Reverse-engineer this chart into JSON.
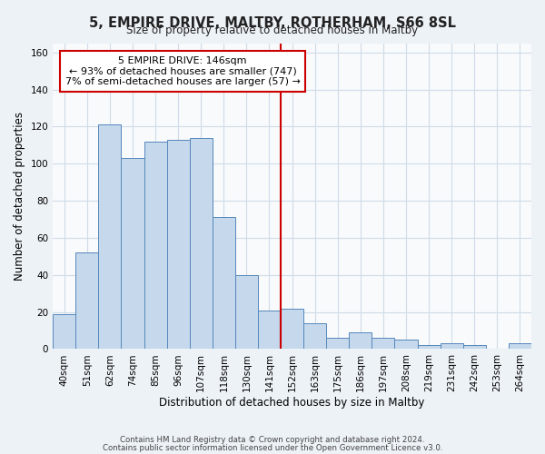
{
  "title": "5, EMPIRE DRIVE, MALTBY, ROTHERHAM, S66 8SL",
  "subtitle": "Size of property relative to detached houses in Maltby",
  "xlabel": "Distribution of detached houses by size in Maltby",
  "ylabel": "Number of detached properties",
  "bar_labels": [
    "40sqm",
    "51sqm",
    "62sqm",
    "74sqm",
    "85sqm",
    "96sqm",
    "107sqm",
    "118sqm",
    "130sqm",
    "141sqm",
    "152sqm",
    "163sqm",
    "175sqm",
    "186sqm",
    "197sqm",
    "208sqm",
    "219sqm",
    "231sqm",
    "242sqm",
    "253sqm",
    "264sqm"
  ],
  "bar_heights": [
    19,
    52,
    121,
    103,
    112,
    113,
    114,
    71,
    40,
    21,
    22,
    14,
    6,
    9,
    6,
    5,
    2,
    3,
    2,
    0,
    3
  ],
  "bar_color": "#c5d8ec",
  "bar_edge_color": "#5588bb",
  "ylim": [
    0,
    165
  ],
  "yticks": [
    0,
    20,
    40,
    60,
    80,
    100,
    120,
    140,
    160
  ],
  "vline_x_idx": 9.5,
  "vline_color": "#cc0000",
  "annotation_title": "5 EMPIRE DRIVE: 146sqm",
  "annotation_line1": "← 93% of detached houses are smaller (747)",
  "annotation_line2": "7% of semi-detached houses are larger (57) →",
  "annotation_box_color": "#ffffff",
  "annotation_box_edge": "#cc0000",
  "footer1": "Contains HM Land Registry data © Crown copyright and database right 2024.",
  "footer2": "Contains public sector information licensed under the Open Government Licence v3.0.",
  "background_color": "#edf2f7",
  "plot_bg_color": "#f8fafc",
  "grid_color": "#d0dce8"
}
